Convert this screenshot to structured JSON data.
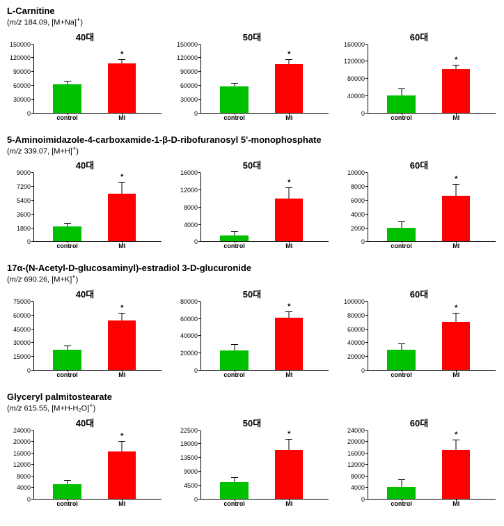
{
  "colors": {
    "control": "#00c000",
    "mi": "#ff0000",
    "axis": "#000000",
    "bg": "#ffffff"
  },
  "x_categories": [
    "control",
    "MI"
  ],
  "bar_width_pct": 22,
  "panels": [
    "40대",
    "50대",
    "60대"
  ],
  "compounds": [
    {
      "name": "L-Carnitine",
      "mz_prefix": "m/z",
      "mz_value": " 184.09,  [M+Na]",
      "mz_suffix": "+",
      "charts": [
        {
          "title": "40대",
          "ymax": 150000,
          "ystep": 30000,
          "control": {
            "val": 63000,
            "err": 5000
          },
          "mi": {
            "val": 108000,
            "err": 8000,
            "sig": true
          }
        },
        {
          "title": "50대",
          "ymax": 150000,
          "ystep": 30000,
          "control": {
            "val": 57000,
            "err": 6000
          },
          "mi": {
            "val": 107000,
            "err": 8000,
            "sig": true
          }
        },
        {
          "title": "60대",
          "ymax": 160000,
          "ystep": 40000,
          "control": {
            "val": 40000,
            "err": 15000
          },
          "mi": {
            "val": 103000,
            "err": 8000,
            "sig": true
          }
        }
      ]
    },
    {
      "name": "5-Aminoimidazole-4-carboxamide-1-β-D-ribofuranosyl 5'-monophosphate",
      "mz_prefix": "m/z",
      "mz_value": " 339.07,  [M+H]",
      "mz_suffix": "+",
      "charts": [
        {
          "title": "40대",
          "ymax": 9000,
          "ystep": 1800,
          "control": {
            "val": 1950,
            "err": 400
          },
          "mi": {
            "val": 6300,
            "err": 1400,
            "sig": true
          }
        },
        {
          "title": "50대",
          "ymax": 16000,
          "ystep": 4000,
          "control": {
            "val": 1400,
            "err": 700
          },
          "mi": {
            "val": 10000,
            "err": 2500,
            "sig": true
          }
        },
        {
          "title": "60대",
          "ymax": 10000,
          "ystep": 2000,
          "control": {
            "val": 2000,
            "err": 900
          },
          "mi": {
            "val": 6700,
            "err": 1600,
            "sig": true
          }
        }
      ]
    },
    {
      "name": "17α-(N-Acetyl-D-glucosaminyl)-estradiol 3-D-glucuronide",
      "mz_prefix": "m/z",
      "mz_value": " 690.26,  [M+K]",
      "mz_suffix": "+",
      "charts": [
        {
          "title": "40대",
          "ymax": 75000,
          "ystep": 15000,
          "control": {
            "val": 22000,
            "err": 4000
          },
          "mi": {
            "val": 54000,
            "err": 8000,
            "sig": true
          }
        },
        {
          "title": "50대",
          "ymax": 80000,
          "ystep": 20000,
          "control": {
            "val": 23000,
            "err": 6000
          },
          "mi": {
            "val": 61000,
            "err": 7000,
            "sig": true
          }
        },
        {
          "title": "60대",
          "ymax": 100000,
          "ystep": 20000,
          "control": {
            "val": 30000,
            "err": 8000
          },
          "mi": {
            "val": 70000,
            "err": 13000,
            "sig": true
          }
        }
      ]
    },
    {
      "name": "Glyceryl palmitostearate",
      "mz_prefix": "m/z",
      "mz_value": " 615.55,  [M+H-H₂O]",
      "mz_suffix": "+",
      "charts": [
        {
          "title": "40대",
          "ymax": 24000,
          "ystep": 4000,
          "control": {
            "val": 5000,
            "err": 1200
          },
          "mi": {
            "val": 16500,
            "err": 3500,
            "sig": true
          }
        },
        {
          "title": "50대",
          "ymax": 22500,
          "ystep": 4500,
          "control": {
            "val": 5500,
            "err": 1300
          },
          "mi": {
            "val": 16000,
            "err": 3500,
            "sig": true
          }
        },
        {
          "title": "60대",
          "ymax": 24000,
          "ystep": 4000,
          "control": {
            "val": 4000,
            "err": 2500
          },
          "mi": {
            "val": 17000,
            "err": 3500,
            "sig": true
          }
        }
      ]
    }
  ]
}
